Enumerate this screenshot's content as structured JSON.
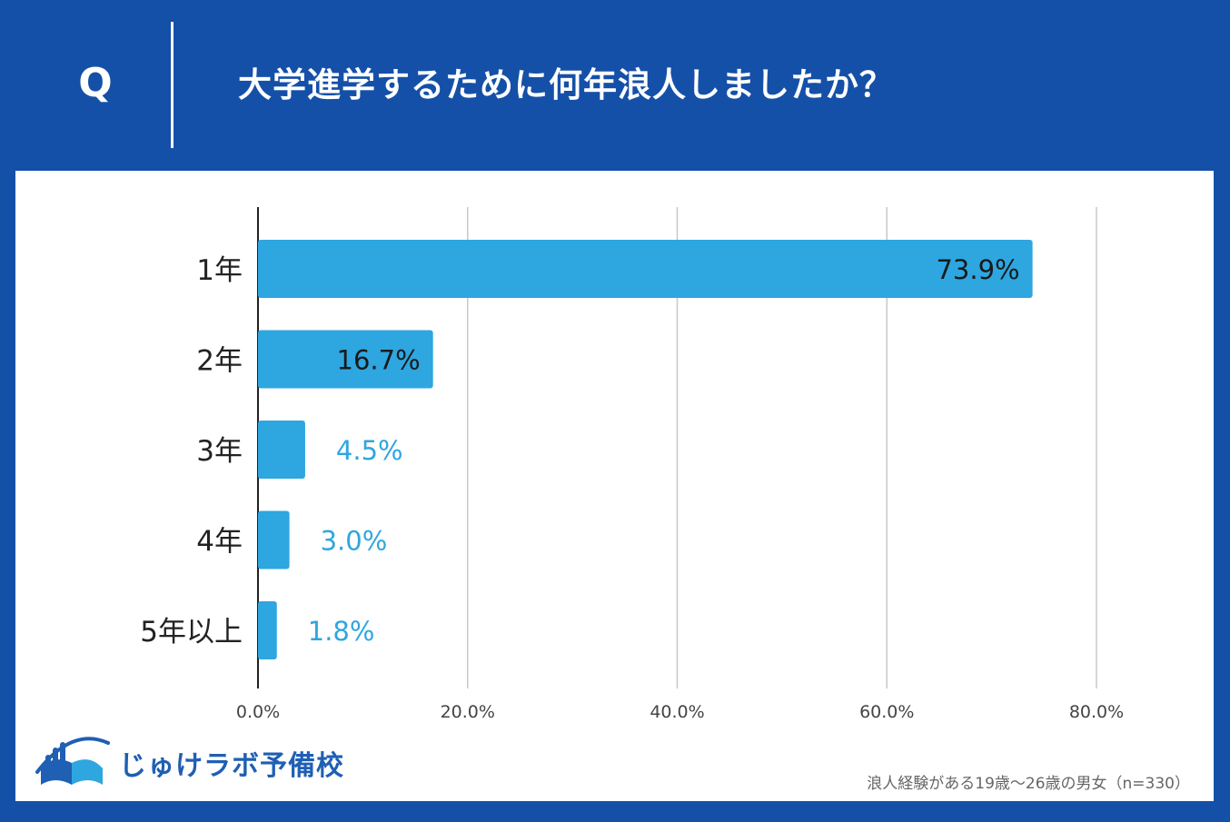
{
  "header": {
    "q_mark": "Q",
    "question": "大学進学するために何年浪人しましたか？"
  },
  "colors": {
    "background": "#1550a8",
    "panel": "#ffffff",
    "bar": "#2ea6e0",
    "label_inside": "#1a1a1a",
    "label_outside": "#2ea6e0",
    "grid": "#c8c8c8"
  },
  "logo": {
    "text": "じゅけラボ予備校",
    "icon": "open-book-icon"
  },
  "footnote": "浪人経験がある19歳～26歳の男女（n=330）",
  "chart_data": {
    "type": "bar",
    "orientation": "horizontal",
    "title": "大学進学するために何年浪人しましたか？",
    "categories": [
      "1年",
      "2年",
      "3年",
      "4年",
      "5年以上"
    ],
    "values": [
      73.9,
      16.7,
      4.5,
      3.0,
      1.8
    ],
    "value_labels": [
      "73.9%",
      "16.7%",
      "4.5%",
      "3.0%",
      "1.8%"
    ],
    "label_inside": [
      true,
      true,
      false,
      false,
      false
    ],
    "xlim": [
      0,
      80
    ],
    "xticks": [
      0,
      20,
      40,
      60,
      80
    ],
    "xtick_labels": [
      "0.0%",
      "20.0%",
      "40.0%",
      "60.0%",
      "80.0%"
    ],
    "grid": true,
    "xlabel": "",
    "ylabel": ""
  }
}
